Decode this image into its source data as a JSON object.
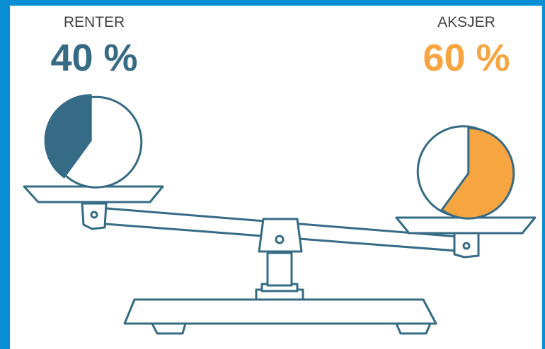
{
  "items": [
    {
      "label": "RENTER",
      "value": 40,
      "value_label": "40 %",
      "color": "#356b85"
    },
    {
      "label": "AKSJER",
      "value": 60,
      "value_label": "60 %",
      "color": "#f7a540"
    }
  ]
}
